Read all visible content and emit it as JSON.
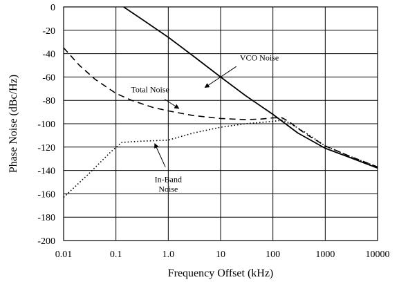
{
  "chart_data": {
    "type": "line",
    "title": "",
    "xlabel": "Frequency Offset (kHz)",
    "ylabel": "Phase Noise (dBc/Hz)",
    "xscale": "log",
    "xlim": [
      0.01,
      10000
    ],
    "ylim": [
      -200,
      0
    ],
    "grid": true,
    "x_ticks": [
      {
        "value": 0.01,
        "label": "0.01"
      },
      {
        "value": 0.1,
        "label": "0.1"
      },
      {
        "value": 1,
        "label": "1.0"
      },
      {
        "value": 10,
        "label": "10"
      },
      {
        "value": 100,
        "label": "100"
      },
      {
        "value": 1000,
        "label": "1000"
      },
      {
        "value": 10000,
        "label": "10000"
      }
    ],
    "y_ticks": [
      {
        "value": 0,
        "label": "0"
      },
      {
        "value": -20,
        "label": "-20"
      },
      {
        "value": -40,
        "label": "-40"
      },
      {
        "value": -60,
        "label": "-60"
      },
      {
        "value": -80,
        "label": "-80"
      },
      {
        "value": -100,
        "label": "-100"
      },
      {
        "value": -120,
        "label": "-120"
      },
      {
        "value": -140,
        "label": "-140"
      },
      {
        "value": -160,
        "label": "-160"
      },
      {
        "value": -180,
        "label": "-180"
      },
      {
        "value": -200,
        "label": "-200"
      }
    ],
    "series": [
      {
        "key": "vco",
        "style": "solid",
        "color": "#000000",
        "points": [
          [
            0.14,
            0
          ],
          [
            0.3,
            -10
          ],
          [
            1,
            -26
          ],
          [
            3,
            -42
          ],
          [
            10,
            -60
          ],
          [
            30,
            -76
          ],
          [
            100,
            -92
          ],
          [
            300,
            -108
          ],
          [
            1000,
            -121
          ],
          [
            3000,
            -129
          ],
          [
            10000,
            -138
          ]
        ]
      },
      {
        "key": "total",
        "style": "dashed",
        "color": "#000000",
        "points": [
          [
            0.01,
            -35
          ],
          [
            0.02,
            -50
          ],
          [
            0.04,
            -62
          ],
          [
            0.1,
            -74
          ],
          [
            0.2,
            -80
          ],
          [
            0.5,
            -86
          ],
          [
            1,
            -89
          ],
          [
            3,
            -93
          ],
          [
            10,
            -95.5
          ],
          [
            30,
            -96.5
          ],
          [
            60,
            -96
          ],
          [
            100,
            -95
          ],
          [
            150,
            -95
          ],
          [
            200,
            -98
          ],
          [
            400,
            -108
          ],
          [
            1000,
            -119
          ],
          [
            3000,
            -128
          ],
          [
            10000,
            -137
          ]
        ]
      },
      {
        "key": "inband",
        "style": "dotted",
        "color": "#000000",
        "points": [
          [
            0.01,
            -163
          ],
          [
            0.03,
            -143
          ],
          [
            0.08,
            -124
          ],
          [
            0.13,
            -116
          ],
          [
            0.3,
            -115
          ],
          [
            1,
            -114
          ],
          [
            3,
            -108
          ],
          [
            10,
            -103
          ],
          [
            30,
            -100
          ],
          [
            100,
            -98
          ],
          [
            150,
            -97
          ],
          [
            200,
            -99
          ],
          [
            400,
            -107
          ],
          [
            1000,
            -119
          ],
          [
            3000,
            -128
          ],
          [
            10000,
            -137
          ]
        ]
      }
    ],
    "annotations": [
      {
        "text": "VCO Noise",
        "lines": [
          "VCO Noise"
        ],
        "text_at": [
          55,
          -46
        ],
        "arrow_from": [
          20,
          -51
        ],
        "arrow_to": [
          5,
          -69
        ]
      },
      {
        "text": "Total Noise",
        "lines": [
          "Total Noise"
        ],
        "text_at": [
          0.45,
          -73
        ],
        "arrow_from": [
          0.85,
          -79
        ],
        "arrow_to": [
          1.6,
          -87
        ]
      },
      {
        "text": "In-Band Noise",
        "lines": [
          "In-Band",
          "Noise"
        ],
        "text_at": [
          1.0,
          -150
        ],
        "arrow_from": [
          0.88,
          -137
        ],
        "arrow_to": [
          0.55,
          -117
        ]
      }
    ]
  }
}
